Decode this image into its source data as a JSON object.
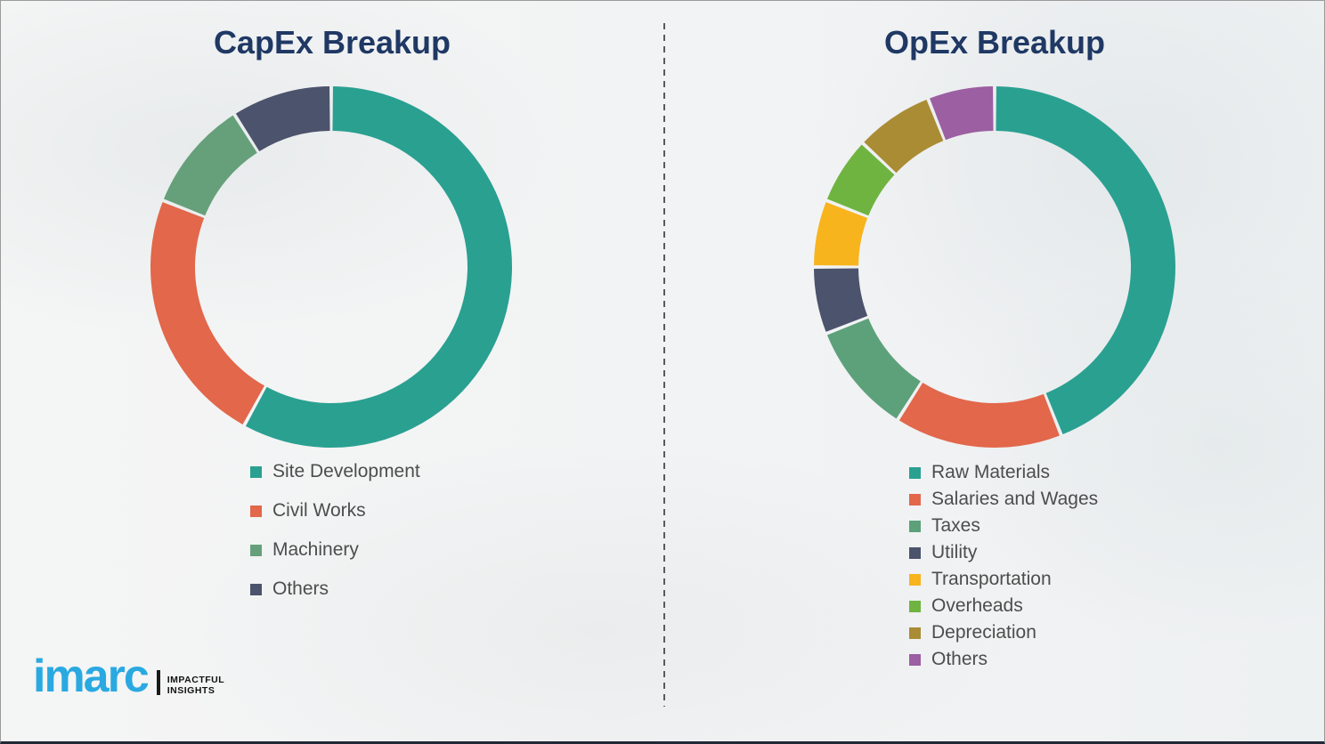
{
  "page": {
    "title_color": "#1f3864",
    "legend_text_color": "#4d4d4d",
    "divider_style": "vertical dashed line",
    "background_color": "#f2f3f4"
  },
  "logo": {
    "brand": "imarc",
    "tagline_line1": "IMPACTFUL",
    "tagline_line2": "INSIGHTS",
    "brand_color": "#2aa9e1"
  },
  "chart_data": [
    {
      "type": "pie",
      "variant": "donut",
      "title": "CapEx Breakup",
      "legend_position": "below-left",
      "start_angle_deg": 0,
      "direction": "clockwise",
      "segments": [
        {
          "label": "Site Development",
          "value": 58,
          "color": "#2aa091"
        },
        {
          "label": "Civil Works",
          "value": 23,
          "color": "#e2674b"
        },
        {
          "label": "Machinery",
          "value": 10,
          "color": "#66a07a"
        },
        {
          "label": "Others",
          "value": 9,
          "color": "#4c536c"
        }
      ]
    },
    {
      "type": "pie",
      "variant": "donut",
      "title": "OpEx Breakup",
      "legend_position": "below-left",
      "start_angle_deg": 0,
      "direction": "clockwise",
      "segments": [
        {
          "label": "Raw Materials",
          "value": 44,
          "color": "#2aa091"
        },
        {
          "label": "Salaries and Wages",
          "value": 15,
          "color": "#e2674b"
        },
        {
          "label": "Taxes",
          "value": 10,
          "color": "#5da17b"
        },
        {
          "label": "Utility",
          "value": 6,
          "color": "#4c536c"
        },
        {
          "label": "Transportation",
          "value": 6,
          "color": "#f8b41d"
        },
        {
          "label": "Overheads",
          "value": 6,
          "color": "#6fb440"
        },
        {
          "label": "Depreciation",
          "value": 7,
          "color": "#aa8c35"
        },
        {
          "label": "Others",
          "value": 6,
          "color": "#9b5fa2"
        }
      ]
    }
  ]
}
